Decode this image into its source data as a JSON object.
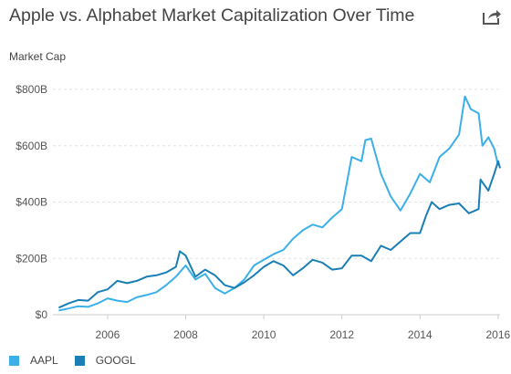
{
  "page": {
    "title": "Apple vs. Alphabet Market Capitalization Over Time",
    "share_icon": "share-icon"
  },
  "chart_data": {
    "type": "line",
    "title": "Apple vs. Alphabet Market Capitalization Over Time",
    "xlabel": "",
    "ylabel": "Market Cap",
    "xlim": [
      2004.6,
      2016.05
    ],
    "ylim": [
      0,
      800
    ],
    "y_ticks": [
      0,
      200,
      400,
      600,
      800
    ],
    "y_tick_labels": [
      "$0",
      "$200B",
      "$400B",
      "$600B",
      "$800B"
    ],
    "x_ticks": [
      2006,
      2008,
      2010,
      2012,
      2014,
      2016
    ],
    "x_tick_labels": [
      "2006",
      "2008",
      "2010",
      "2012",
      "2014",
      "2016"
    ],
    "grid": true,
    "legend_position": "bottom-left",
    "series": [
      {
        "name": "AAPL",
        "color": "#3bb0e8",
        "x": [
          2004.75,
          2005.0,
          2005.25,
          2005.5,
          2005.75,
          2006.0,
          2006.25,
          2006.5,
          2006.75,
          2007.0,
          2007.25,
          2007.5,
          2007.75,
          2008.0,
          2008.25,
          2008.5,
          2008.75,
          2009.0,
          2009.25,
          2009.5,
          2009.75,
          2010.0,
          2010.25,
          2010.5,
          2010.75,
          2011.0,
          2011.25,
          2011.5,
          2011.75,
          2012.0,
          2012.25,
          2012.5,
          2012.6,
          2012.75,
          2013.0,
          2013.25,
          2013.5,
          2013.75,
          2014.0,
          2014.25,
          2014.5,
          2014.75,
          2015.0,
          2015.15,
          2015.3,
          2015.5,
          2015.6,
          2015.75,
          2015.9,
          2016.0
        ],
        "values": [
          15,
          22,
          30,
          28,
          40,
          58,
          50,
          45,
          62,
          70,
          80,
          105,
          135,
          175,
          125,
          145,
          95,
          75,
          95,
          125,
          175,
          195,
          215,
          230,
          270,
          300,
          320,
          310,
          345,
          375,
          560,
          545,
          620,
          625,
          500,
          420,
          370,
          430,
          500,
          470,
          560,
          590,
          640,
          775,
          730,
          715,
          600,
          630,
          590,
          530
        ]
      },
      {
        "name": "GOOGL",
        "color": "#1a7fb5",
        "x": [
          2004.75,
          2005.0,
          2005.25,
          2005.5,
          2005.75,
          2006.0,
          2006.25,
          2006.5,
          2006.75,
          2007.0,
          2007.25,
          2007.5,
          2007.75,
          2007.85,
          2008.0,
          2008.25,
          2008.5,
          2008.75,
          2009.0,
          2009.25,
          2009.5,
          2009.75,
          2010.0,
          2010.25,
          2010.5,
          2010.75,
          2011.0,
          2011.25,
          2011.5,
          2011.75,
          2012.0,
          2012.25,
          2012.5,
          2012.75,
          2013.0,
          2013.25,
          2013.5,
          2013.75,
          2014.0,
          2014.15,
          2014.3,
          2014.5,
          2014.75,
          2015.0,
          2015.25,
          2015.5,
          2015.55,
          2015.75,
          2015.9,
          2016.0,
          2016.05
        ],
        "values": [
          25,
          40,
          52,
          50,
          80,
          90,
          120,
          112,
          120,
          135,
          140,
          150,
          170,
          225,
          210,
          135,
          160,
          140,
          105,
          95,
          115,
          140,
          170,
          190,
          175,
          140,
          165,
          195,
          185,
          160,
          165,
          210,
          210,
          190,
          245,
          230,
          260,
          290,
          290,
          350,
          400,
          375,
          390,
          395,
          360,
          375,
          480,
          440,
          500,
          545,
          520
        ]
      }
    ]
  }
}
